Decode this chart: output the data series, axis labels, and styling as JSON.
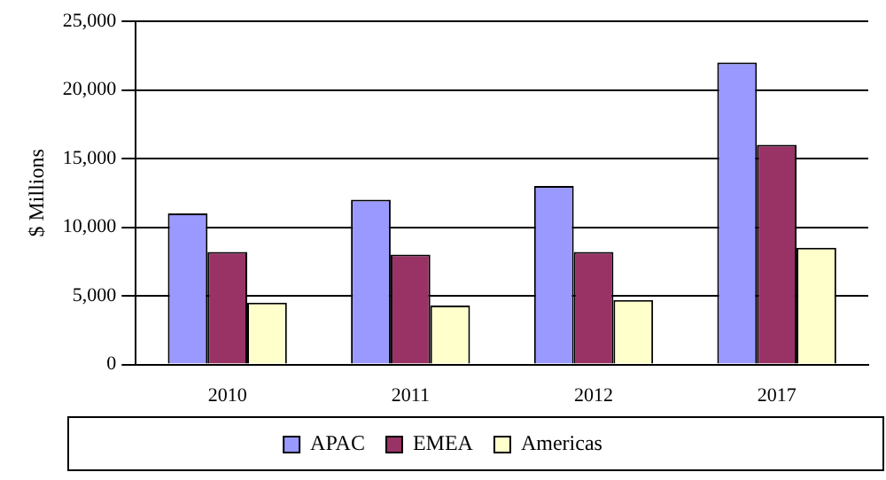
{
  "chart_data": {
    "type": "bar",
    "ylabel": "$ Millions",
    "categories": [
      "2010",
      "2011",
      "2012",
      "2017"
    ],
    "series": [
      {
        "name": "APAC",
        "color": "#9999ff",
        "values": [
          11000,
          12000,
          13000,
          22000
        ]
      },
      {
        "name": "EMEA",
        "color": "#993366",
        "values": [
          8200,
          8000,
          8200,
          16000
        ]
      },
      {
        "name": "Americas",
        "color": "#ffffcc",
        "values": [
          4500,
          4300,
          4700,
          8500
        ]
      }
    ],
    "ylim": [
      0,
      25000
    ],
    "yticks": [
      {
        "value": 0,
        "label": "0"
      },
      {
        "value": 5000,
        "label": "5,000"
      },
      {
        "value": 10000,
        "label": "10,000"
      },
      {
        "value": 15000,
        "label": "15,000"
      },
      {
        "value": 20000,
        "label": "20,000"
      },
      {
        "value": 25000,
        "label": "25,000"
      }
    ],
    "grid": "y",
    "legend": "bottom"
  }
}
